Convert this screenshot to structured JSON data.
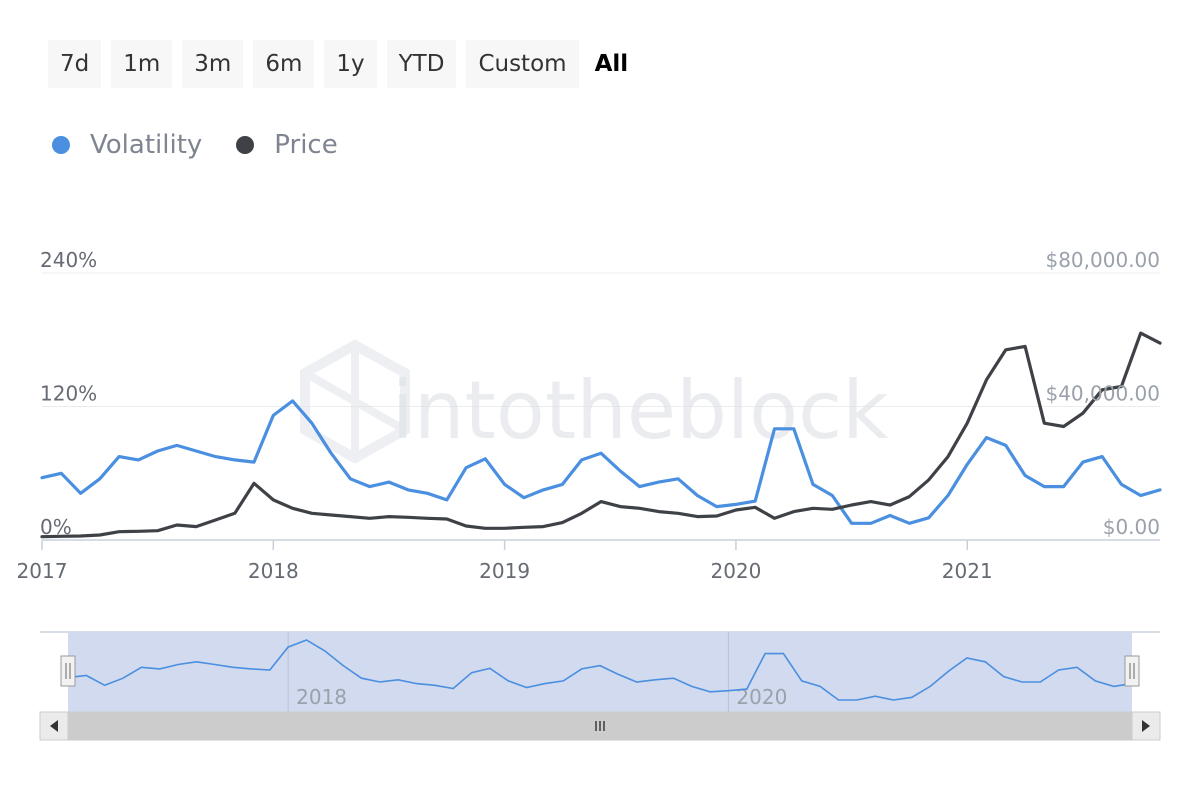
{
  "range_selector": {
    "buttons": [
      "7d",
      "1m",
      "3m",
      "6m",
      "1y",
      "YTD",
      "Custom",
      "All"
    ],
    "selected": "All"
  },
  "legend": {
    "items": [
      {
        "label": "Volatility",
        "color": "#4a8fe0"
      },
      {
        "label": "Price",
        "color": "#3e4247"
      }
    ]
  },
  "watermark": "intotheblock",
  "chart_data": {
    "type": "line",
    "x_ticks": [
      "2017",
      "2018",
      "2019",
      "2020",
      "2021"
    ],
    "x_range": [
      "2017-01",
      "2021-11"
    ],
    "grid": true,
    "legend_position": "top-left",
    "y_left": {
      "ticks": [
        "0%",
        "120%",
        "240%"
      ],
      "range": [
        0,
        240
      ],
      "unit": "%"
    },
    "y_right": {
      "ticks": [
        "$0.00",
        "$40,000.00",
        "$80,000.00"
      ],
      "range": [
        0,
        80000
      ],
      "unit": "USD"
    },
    "series": [
      {
        "name": "Volatility",
        "axis": "left",
        "color": "#4a8fe0",
        "x": [
          "2017-01",
          "2017-02",
          "2017-03",
          "2017-04",
          "2017-05",
          "2017-06",
          "2017-07",
          "2017-08",
          "2017-09",
          "2017-10",
          "2017-11",
          "2017-12",
          "2018-01",
          "2018-02",
          "2018-03",
          "2018-04",
          "2018-05",
          "2018-06",
          "2018-07",
          "2018-08",
          "2018-09",
          "2018-10",
          "2018-11",
          "2018-12",
          "2019-01",
          "2019-02",
          "2019-03",
          "2019-04",
          "2019-05",
          "2019-06",
          "2019-07",
          "2019-08",
          "2019-09",
          "2019-10",
          "2019-11",
          "2019-12",
          "2020-01",
          "2020-02",
          "2020-03",
          "2020-04",
          "2020-05",
          "2020-06",
          "2020-07",
          "2020-08",
          "2020-09",
          "2020-10",
          "2020-11",
          "2020-12",
          "2021-01",
          "2021-02",
          "2021-03",
          "2021-04",
          "2021-05",
          "2021-06",
          "2021-07",
          "2021-08",
          "2021-09",
          "2021-10",
          "2021-11"
        ],
        "values": [
          56,
          60,
          42,
          55,
          75,
          72,
          80,
          85,
          80,
          75,
          72,
          70,
          112,
          125,
          105,
          78,
          55,
          48,
          52,
          45,
          42,
          36,
          65,
          73,
          50,
          38,
          45,
          50,
          72,
          78,
          62,
          48,
          52,
          55,
          40,
          30,
          32,
          35,
          100,
          100,
          50,
          40,
          15,
          15,
          22,
          15,
          20,
          40,
          68,
          92,
          85,
          58,
          48,
          48,
          70,
          75,
          50,
          40,
          45
        ]
      },
      {
        "name": "Price",
        "axis": "right",
        "color": "#3e4247",
        "x": [
          "2017-01",
          "2017-02",
          "2017-03",
          "2017-04",
          "2017-05",
          "2017-06",
          "2017-07",
          "2017-08",
          "2017-09",
          "2017-10",
          "2017-11",
          "2017-12",
          "2018-01",
          "2018-02",
          "2018-03",
          "2018-04",
          "2018-05",
          "2018-06",
          "2018-07",
          "2018-08",
          "2018-09",
          "2018-10",
          "2018-11",
          "2018-12",
          "2019-01",
          "2019-02",
          "2019-03",
          "2019-04",
          "2019-05",
          "2019-06",
          "2019-07",
          "2019-08",
          "2019-09",
          "2019-10",
          "2019-11",
          "2019-12",
          "2020-01",
          "2020-02",
          "2020-03",
          "2020-04",
          "2020-05",
          "2020-06",
          "2020-07",
          "2020-08",
          "2020-09",
          "2020-10",
          "2020-11",
          "2020-12",
          "2021-01",
          "2021-02",
          "2021-03",
          "2021-04",
          "2021-05",
          "2021-06",
          "2021-07",
          "2021-08",
          "2021-09",
          "2021-10",
          "2021-11"
        ],
        "values": [
          1000,
          1100,
          1200,
          1500,
          2500,
          2600,
          2800,
          4500,
          4000,
          6000,
          8000,
          17000,
          12000,
          9500,
          8000,
          7500,
          7000,
          6500,
          7000,
          6800,
          6500,
          6300,
          4200,
          3500,
          3500,
          3800,
          4000,
          5200,
          8000,
          11500,
          10000,
          9500,
          8500,
          8000,
          7000,
          7200,
          9000,
          9800,
          6500,
          8500,
          9500,
          9200,
          10500,
          11500,
          10500,
          13000,
          18000,
          25000,
          35000,
          48000,
          57000,
          58000,
          35000,
          34000,
          38000,
          45000,
          46000,
          62000,
          59000
        ]
      }
    ],
    "navigator": {
      "labels": [
        "2018",
        "2020"
      ],
      "selected_range": [
        "2017-01",
        "2021-11"
      ]
    }
  }
}
